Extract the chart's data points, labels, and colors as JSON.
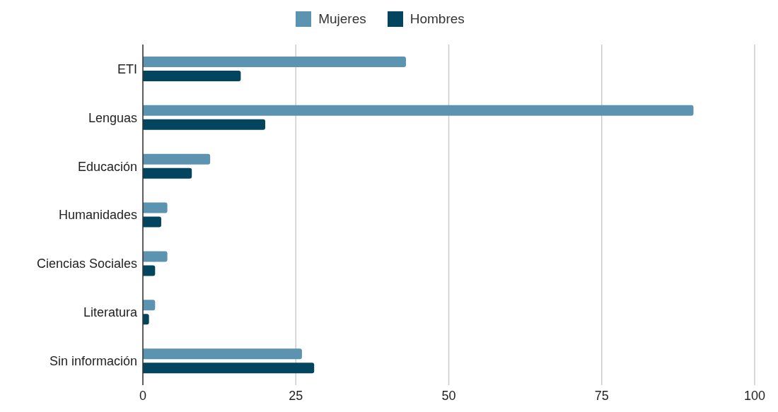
{
  "chart_data": {
    "type": "bar",
    "orientation": "horizontal",
    "categories": [
      "ETI",
      "Lenguas",
      "Educación",
      "Humanidades",
      "Ciencias Sociales",
      "Literatura",
      "Sin información"
    ],
    "series": [
      {
        "name": "Mujeres",
        "color": "#5b93b0",
        "values": [
          43,
          90,
          11,
          4,
          4,
          2,
          26
        ]
      },
      {
        "name": "Hombres",
        "color": "#03445f",
        "values": [
          16,
          20,
          8,
          3,
          2,
          1,
          28
        ]
      }
    ],
    "xlim": [
      0,
      100
    ],
    "xticks": [
      0,
      25,
      50,
      75,
      100
    ],
    "grid": "x",
    "legend": "top"
  }
}
